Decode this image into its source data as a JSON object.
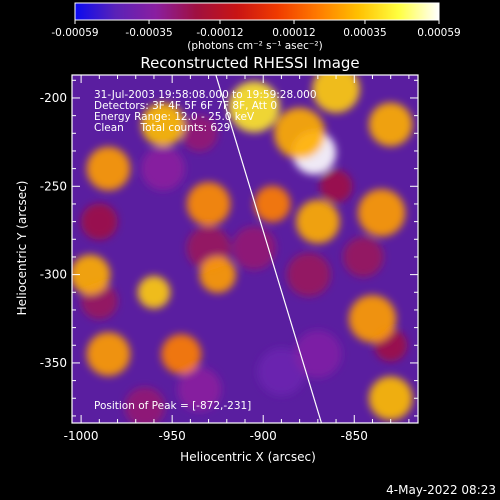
{
  "chart_data": {
    "type": "heatmap",
    "title": "Reconstructed RHESSI Image",
    "xlabel": "Heliocentric X (arcsec)",
    "ylabel": "Heliocentric Y (arcsec)",
    "xlim": [
      -1005,
      -815
    ],
    "ylim": [
      -384,
      -187
    ],
    "x_ticks": [
      "-1000",
      "-950",
      "-900",
      "-850"
    ],
    "x_tick_values": [
      -1000,
      -950,
      -900,
      -850
    ],
    "y_ticks": [
      "-200",
      "-250",
      "-300",
      "-350"
    ],
    "y_tick_values": [
      -200,
      -250,
      -300,
      -350
    ],
    "colorbar": {
      "min": -0.00059,
      "max": 0.00059,
      "tick_labels": [
        "-0.00059",
        "-0.00035",
        "-0.00012",
        "0.00012",
        "0.00035",
        "0.00059"
      ],
      "tick_values": [
        -0.00059,
        -0.00035,
        -0.00012,
        0.00012,
        0.00035,
        0.00059
      ],
      "unit_label": "(photons cm⁻² s⁻¹ asec⁻²)",
      "colors": [
        "#0a0af0",
        "#5a22b8",
        "#8a1fa0",
        "#a01040",
        "#c81414",
        "#f03a00",
        "#ff7a00",
        "#ffc000",
        "#ffff40",
        "#ffffff"
      ]
    },
    "annotations": [
      "31-Jul-2003 19:58:08.000 to 19:59:28.000",
      "Detectors: 3F 4F 5F 6F 7F 8F, Att 0",
      "Energy Range: 12.0 - 25.0 keV",
      "Clean     Total counts: 629"
    ],
    "peak_label": "Position of Peak = [-872,-231]",
    "peak": {
      "x": -872,
      "y": -231
    },
    "limb_line": [
      [
        -926,
        -187
      ],
      [
        -868,
        -384
      ]
    ],
    "hot_spots": [
      {
        "x": -872,
        "y": -231,
        "level": 1.0,
        "r": 12
      },
      {
        "x": -905,
        "y": -205,
        "level": 0.7,
        "r": 14
      },
      {
        "x": -955,
        "y": -215,
        "level": 0.55,
        "r": 12
      },
      {
        "x": -860,
        "y": -195,
        "level": 0.6,
        "r": 13
      },
      {
        "x": -830,
        "y": -215,
        "level": 0.5,
        "r": 12
      },
      {
        "x": -985,
        "y": -240,
        "level": 0.45,
        "r": 12
      },
      {
        "x": -995,
        "y": -300,
        "level": 0.5,
        "r": 11
      },
      {
        "x": -930,
        "y": -260,
        "level": 0.4,
        "r": 12
      },
      {
        "x": -960,
        "y": -310,
        "level": 0.6,
        "r": 9
      },
      {
        "x": -925,
        "y": -300,
        "level": 0.45,
        "r": 10
      },
      {
        "x": -870,
        "y": -270,
        "level": 0.5,
        "r": 12
      },
      {
        "x": -835,
        "y": -265,
        "level": 0.45,
        "r": 13
      },
      {
        "x": -985,
        "y": -345,
        "level": 0.45,
        "r": 12
      },
      {
        "x": -945,
        "y": -345,
        "level": 0.35,
        "r": 11
      },
      {
        "x": -840,
        "y": -325,
        "level": 0.45,
        "r": 13
      },
      {
        "x": -830,
        "y": -370,
        "level": 0.55,
        "r": 12
      },
      {
        "x": -880,
        "y": -220,
        "level": 0.5,
        "r": 14
      },
      {
        "x": -895,
        "y": -260,
        "level": 0.35,
        "r": 10
      }
    ],
    "cold_spots": [
      {
        "x": -955,
        "y": -240,
        "level": -0.55,
        "r": 12
      },
      {
        "x": -935,
        "y": -220,
        "level": -0.45,
        "r": 10
      },
      {
        "x": -905,
        "y": -285,
        "level": -0.45,
        "r": 12
      },
      {
        "x": -930,
        "y": -285,
        "level": -0.4,
        "r": 12
      },
      {
        "x": -890,
        "y": -355,
        "level": -0.7,
        "r": 13
      },
      {
        "x": -870,
        "y": -345,
        "level": -0.6,
        "r": 13
      },
      {
        "x": -935,
        "y": -365,
        "level": -0.55,
        "r": 12
      },
      {
        "x": -965,
        "y": -375,
        "level": -0.45,
        "r": 11
      },
      {
        "x": -990,
        "y": -315,
        "level": -0.4,
        "r": 10
      },
      {
        "x": -845,
        "y": -290,
        "level": -0.4,
        "r": 11
      },
      {
        "x": -875,
        "y": -300,
        "level": -0.4,
        "r": 12
      },
      {
        "x": -860,
        "y": -250,
        "level": -0.35,
        "r": 9
      },
      {
        "x": -990,
        "y": -270,
        "level": -0.35,
        "r": 10
      },
      {
        "x": -830,
        "y": -340,
        "level": -0.35,
        "r": 9
      }
    ]
  },
  "footer": {
    "timestamp": "4-May-2022 08:23"
  }
}
